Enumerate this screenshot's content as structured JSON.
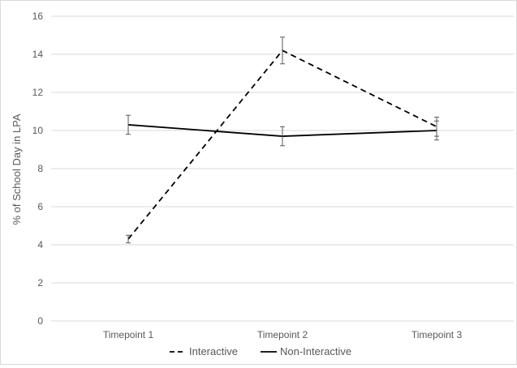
{
  "chart_data": {
    "type": "line",
    "title": "",
    "xlabel": "",
    "ylabel": "% of School Day in LPA",
    "categories": [
      "Timepoint 1",
      "Timepoint 2",
      "Timepoint 3"
    ],
    "ylim": [
      0,
      16
    ],
    "yticks": [
      0,
      2,
      4,
      6,
      8,
      10,
      12,
      14,
      16
    ],
    "grid": true,
    "legend_position": "bottom",
    "series": [
      {
        "name": "Interactive",
        "style": "dashed",
        "color": "#000000",
        "values": [
          4.3,
          14.2,
          10.2
        ],
        "error": [
          0.2,
          0.7,
          0.5
        ]
      },
      {
        "name": "Non-Interactive",
        "style": "solid",
        "color": "#000000",
        "values": [
          10.3,
          9.7,
          10.0
        ],
        "error": [
          0.5,
          0.5,
          0.5
        ]
      }
    ]
  }
}
